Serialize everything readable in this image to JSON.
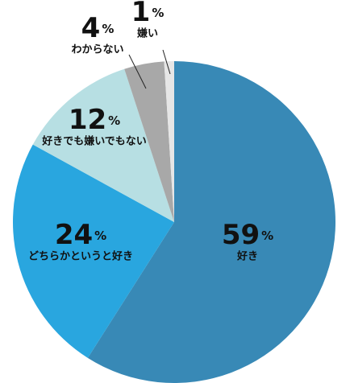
{
  "chart_data": {
    "type": "pie",
    "categories": [
      "好き",
      "どちらかというと好き",
      "好きでも嫌いでもない",
      "わからない",
      "嫌い"
    ],
    "values": [
      59,
      24,
      12,
      4,
      1
    ],
    "value_suffix": "%",
    "colors": [
      "#3889b6",
      "#29a6df",
      "#b7dfe3",
      "#a8a8a8",
      "#e6e6e6"
    ]
  }
}
